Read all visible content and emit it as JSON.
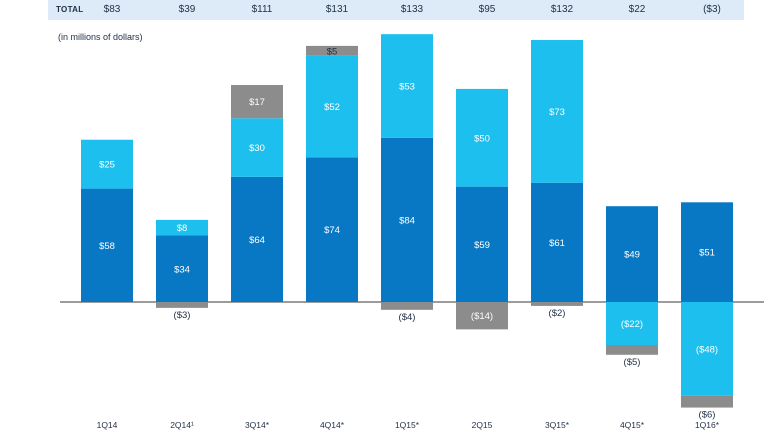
{
  "header": {
    "total_label": "TOTAL",
    "totals": [
      "$83",
      "$39",
      "$111",
      "$131",
      "$133",
      "$95",
      "$132",
      "$22",
      "($3)"
    ]
  },
  "units_label": "(in millions of dollars)",
  "colors": {
    "dark_blue": "#0878c4",
    "light_blue": "#1cbfee",
    "gray": "#8c8c8c",
    "band": "#dcebf7"
  },
  "chart_data": {
    "type": "bar",
    "stacked": true,
    "categories": [
      "1Q14",
      "2Q14¹",
      "3Q14*",
      "4Q14*",
      "1Q15*",
      "2Q15",
      "3Q15*",
      "4Q15*",
      "1Q16*"
    ],
    "series": [
      {
        "key": "dark",
        "color": "#0878c4",
        "values": [
          58,
          34,
          64,
          74,
          84,
          59,
          61,
          49,
          51
        ],
        "labels": [
          "$58",
          "$34",
          "$64",
          "$74",
          "$84",
          "$59",
          "$61",
          "$49",
          "$51"
        ]
      },
      {
        "key": "light",
        "color": "#1cbfee",
        "values": [
          25,
          8,
          30,
          52,
          53,
          50,
          73,
          -22,
          -48
        ],
        "labels": [
          "$25",
          "$8",
          "$30",
          "$52",
          "$53",
          "$50",
          "$73",
          "($22)",
          "($48)"
        ]
      },
      {
        "key": "gray",
        "color": "#8c8c8c",
        "values": [
          null,
          -3,
          17,
          5,
          -4,
          -14,
          -2,
          -5,
          -6
        ],
        "labels": [
          "",
          "($3)",
          "$17",
          "$5",
          "($4)",
          "($14)",
          "($2)",
          "($5)",
          "($6)"
        ]
      }
    ],
    "totals": [
      83,
      39,
      111,
      131,
      133,
      95,
      132,
      22,
      -3
    ],
    "ylabel": "(in millions of dollars)",
    "grid": false,
    "baseline": 0
  }
}
